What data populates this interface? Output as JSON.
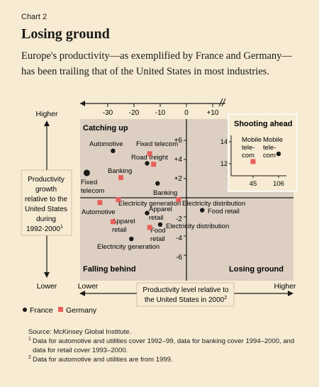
{
  "header": {
    "chart_number": "Chart 2",
    "title": "Losing ground",
    "subtitle": "Europe's productivity—as exemplified by France and Germany—has been trailing that of the United States in most industries."
  },
  "chart_data": {
    "type": "scatter",
    "x_ticks": [
      "-30",
      "-20",
      "-10",
      "0",
      "+10"
    ],
    "y_ticks": [
      "+6",
      "+4",
      "+2",
      "-2",
      "-4",
      "-6"
    ],
    "y_axis": {
      "top_label": "Higher",
      "bottom_label": "Lower",
      "title_lines": [
        "Productivity",
        "growth",
        "relative to the",
        "United States",
        "during",
        "1992-2000"
      ],
      "title_footnote": "1"
    },
    "x_axis": {
      "left_label": "Lower",
      "right_label": "Higher",
      "title_lines": [
        "Productivity level relative to",
        "the United States in 2000"
      ],
      "title_footnote": "2"
    },
    "quadrants": {
      "top_left": "Catching up",
      "bottom_left": "Falling behind",
      "bottom_right": "Losing ground"
    },
    "series": [
      {
        "name": "France",
        "color": "#1a1a1a",
        "marker": "circle",
        "points": [
          {
            "x": -28,
            "y": 4.9,
            "label": "Automotive"
          },
          {
            "x": -15,
            "y": 3.6,
            "label": "Road freight"
          },
          {
            "x": -38,
            "y": 2.6,
            "label_lines": [
              "Fixed",
              "telecom"
            ]
          },
          {
            "x": -11,
            "y": 1.5,
            "label": "Banking"
          },
          {
            "x": -15,
            "y": -1.6,
            "label_lines": [
              "Apparel",
              "retail"
            ]
          },
          {
            "x": 6,
            "y": -1.3,
            "label": "Food retail"
          },
          {
            "x": -10,
            "y": -2.8,
            "label": "Electricity distribution"
          },
          {
            "x": -21,
            "y": -4.3,
            "label": "Electricity generation"
          }
        ]
      },
      {
        "name": "Germany",
        "color": "#e8605c",
        "marker": "square",
        "points": [
          {
            "x": -14,
            "y": 4.6,
            "label": "Fixed telecom"
          },
          {
            "x": -12.5,
            "y": 3.5
          },
          {
            "x": -25,
            "y": 2.1,
            "label": "Banking"
          },
          {
            "x": -33,
            "y": -0.5,
            "label": "Automotive"
          },
          {
            "x": -26,
            "y": -0.2,
            "label": "Electricity generation"
          },
          {
            "x": -3,
            "y": -0.2,
            "label": "Electricity distribution"
          },
          {
            "x": -28,
            "y": -2.5,
            "label_lines": [
              "Apparel",
              "retail"
            ]
          },
          {
            "x": -14,
            "y": -3.1,
            "label_lines": [
              "Food",
              "retail"
            ]
          }
        ]
      }
    ],
    "inset": {
      "title": "Shooting ahead",
      "x_ticks": [
        "45",
        "106"
      ],
      "y_ticks": [
        "14",
        "12"
      ],
      "points": [
        {
          "series": "France",
          "x": 106,
          "y": 12.9,
          "label_lines": [
            "Mobile",
            "tele-",
            "com"
          ]
        },
        {
          "series": "Germany",
          "x": 45,
          "y": 12.2,
          "label_lines": [
            "Mobile",
            "tele-",
            "com"
          ]
        }
      ]
    }
  },
  "legend": {
    "france": "France",
    "germany": "Germany"
  },
  "notes": {
    "source": "Source: McKinsey Global Institute.",
    "note1_mark": "1",
    "note1": "Data for automotive and utilities cover 1992–99, data for banking cover 1994–2000, and data for retail cover 1993–2000.",
    "note2_mark": "2",
    "note2": "Data for automotive and utilities are from 1999."
  },
  "colors": {
    "background": "#f7ebd3",
    "plot": "#ddd0c3",
    "france": "#1a1a1a",
    "germany": "#e8605c"
  }
}
